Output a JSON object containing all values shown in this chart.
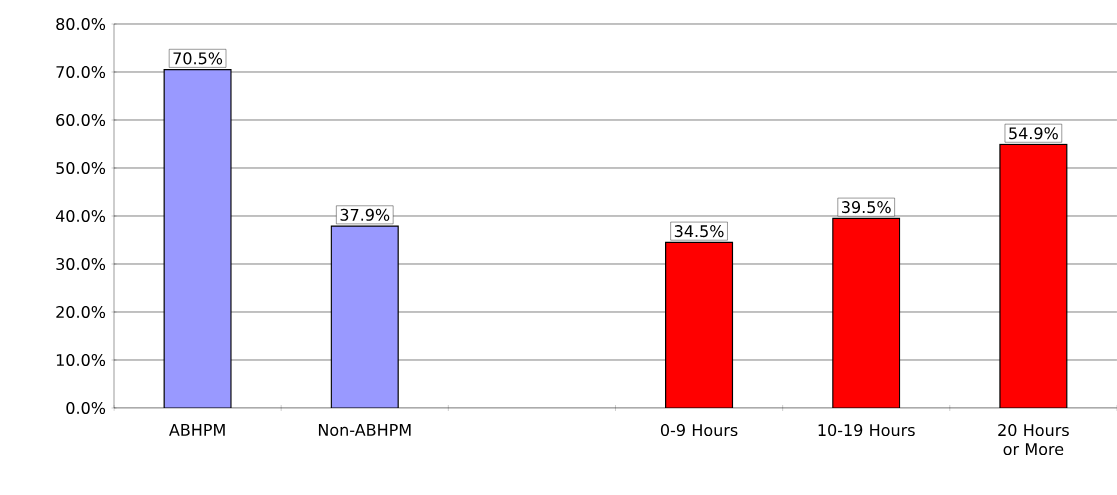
{
  "chart_data": {
    "type": "bar",
    "categories": [
      "ABHPM",
      "Non-ABHPM",
      null,
      "0-9 Hours",
      "10-19 Hours",
      "20 Hours or More"
    ],
    "values": [
      70.5,
      37.9,
      null,
      34.5,
      39.5,
      54.9
    ],
    "colors": [
      "#9999ff",
      "#9999ff",
      null,
      "#ff0000",
      "#ff0000",
      "#ff0000"
    ],
    "value_labels": [
      "70.5%",
      "37.9%",
      null,
      "34.5%",
      "39.5%",
      "54.9%"
    ],
    "ylim": [
      0,
      80
    ],
    "yticks": [
      {
        "value": 0,
        "label": "0.0%"
      },
      {
        "value": 10,
        "label": "10.0%"
      },
      {
        "value": 20,
        "label": "20.0%"
      },
      {
        "value": 30,
        "label": "30.0%"
      },
      {
        "value": 40,
        "label": "40.0%"
      },
      {
        "value": 50,
        "label": "50.0%"
      },
      {
        "value": 60,
        "label": "60.0%"
      },
      {
        "value": 70,
        "label": "70.0%"
      },
      {
        "value": 80,
        "label": "80.0%"
      }
    ],
    "grid": "y"
  }
}
